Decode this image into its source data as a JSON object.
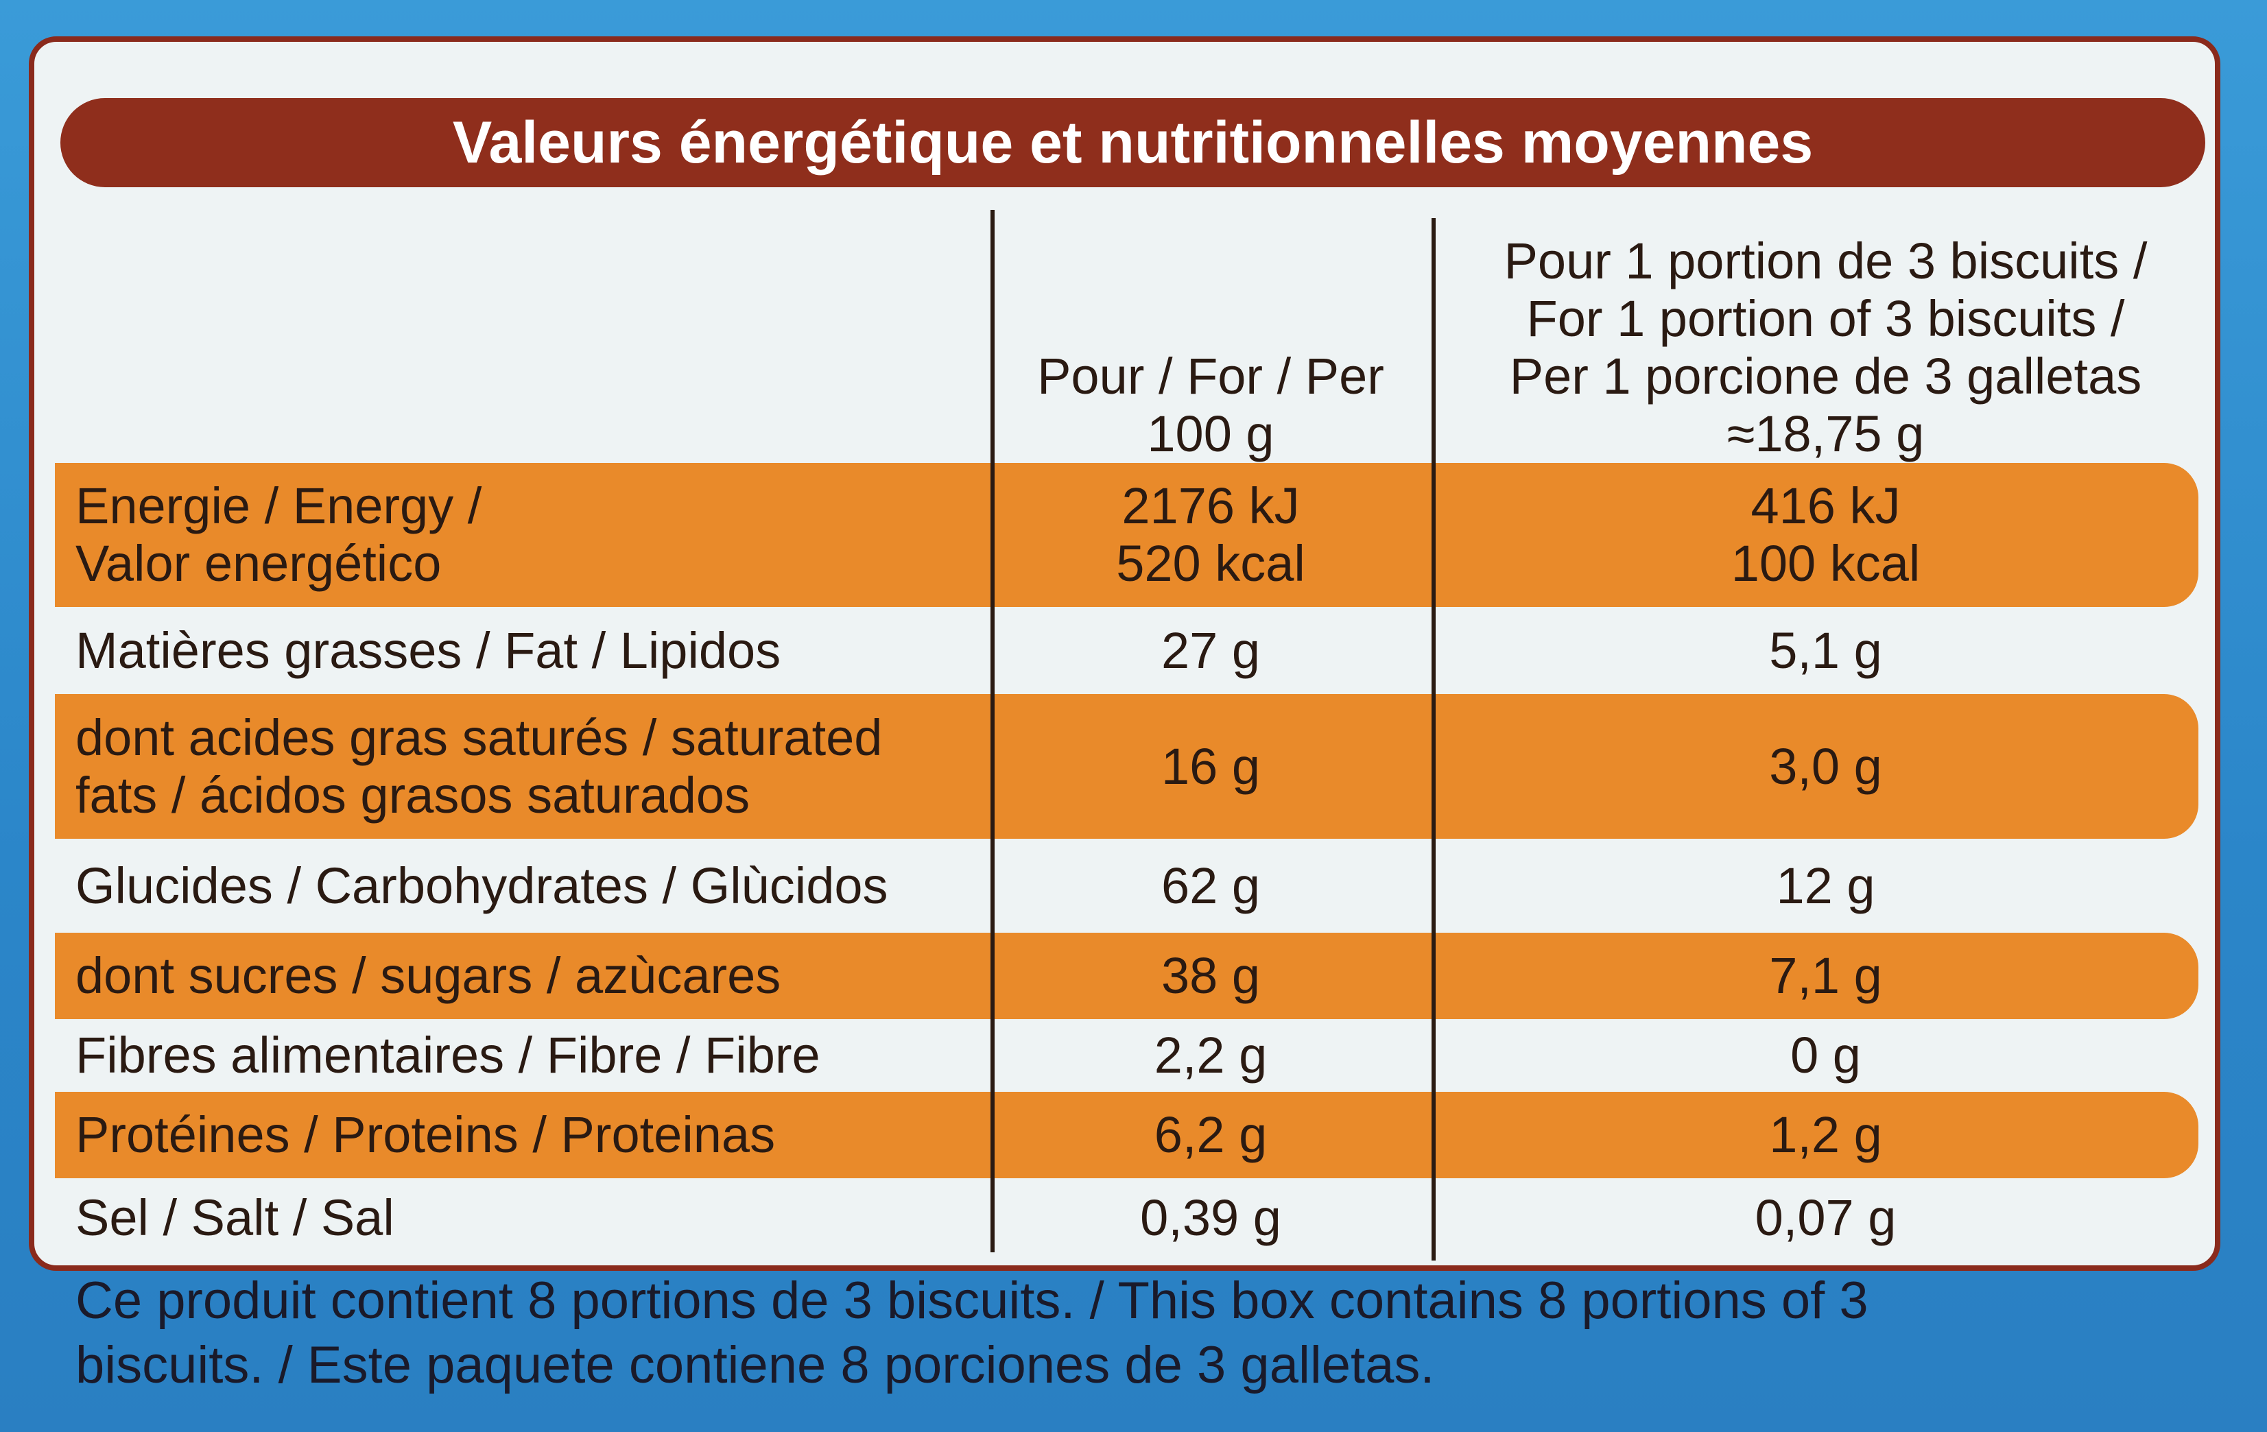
{
  "title": "Valeurs énergétique et nutritionnelles moyennes",
  "table": {
    "header": [
      [
        "Pour / For / Per",
        "100 g"
      ],
      [
        "Pour 1 portion de 3 biscuits /",
        "For 1 portion of 3 biscuits /",
        "Per 1 porcione de 3 galletas",
        "≈18,75 g"
      ]
    ],
    "rows": [
      [
        [
          "Energie / Energy /",
          "Valor energético"
        ],
        [
          "2176 kJ",
          "520 kcal"
        ],
        [
          "416 kJ",
          "100 kcal"
        ]
      ],
      [
        [
          "Matières grasses / Fat / Lipidos"
        ],
        [
          "27 g"
        ],
        [
          "5,1 g"
        ]
      ],
      [
        [
          "dont acides gras saturés / saturated",
          "fats / ácidos grasos saturados"
        ],
        [
          "16 g"
        ],
        [
          "3,0 g"
        ]
      ],
      [
        [
          "Glucides / Carbohydrates / Glùcidos"
        ],
        [
          "62 g"
        ],
        [
          "12 g"
        ]
      ],
      [
        [
          "dont sucres / sugars / azùcares"
        ],
        [
          "38 g"
        ],
        [
          "7,1 g"
        ]
      ],
      [
        [
          "Fibres alimentaires / Fibre / Fibre"
        ],
        [
          "2,2 g"
        ],
        [
          "0 g"
        ]
      ],
      [
        [
          "Protéines / Proteins / Proteinas"
        ],
        [
          "6,2 g"
        ],
        [
          "1,2 g"
        ]
      ],
      [
        [
          "Sel / Salt / Sal"
        ],
        [
          "0,39 g"
        ],
        [
          "0,07 g"
        ]
      ]
    ]
  },
  "footer": [
    "Ce produit contient 8 portions de 3 biscuits. / This box contains 8 portions of 3",
    "biscuits. / Este paquete contiene 8 porciones de 3 galletas."
  ]
}
